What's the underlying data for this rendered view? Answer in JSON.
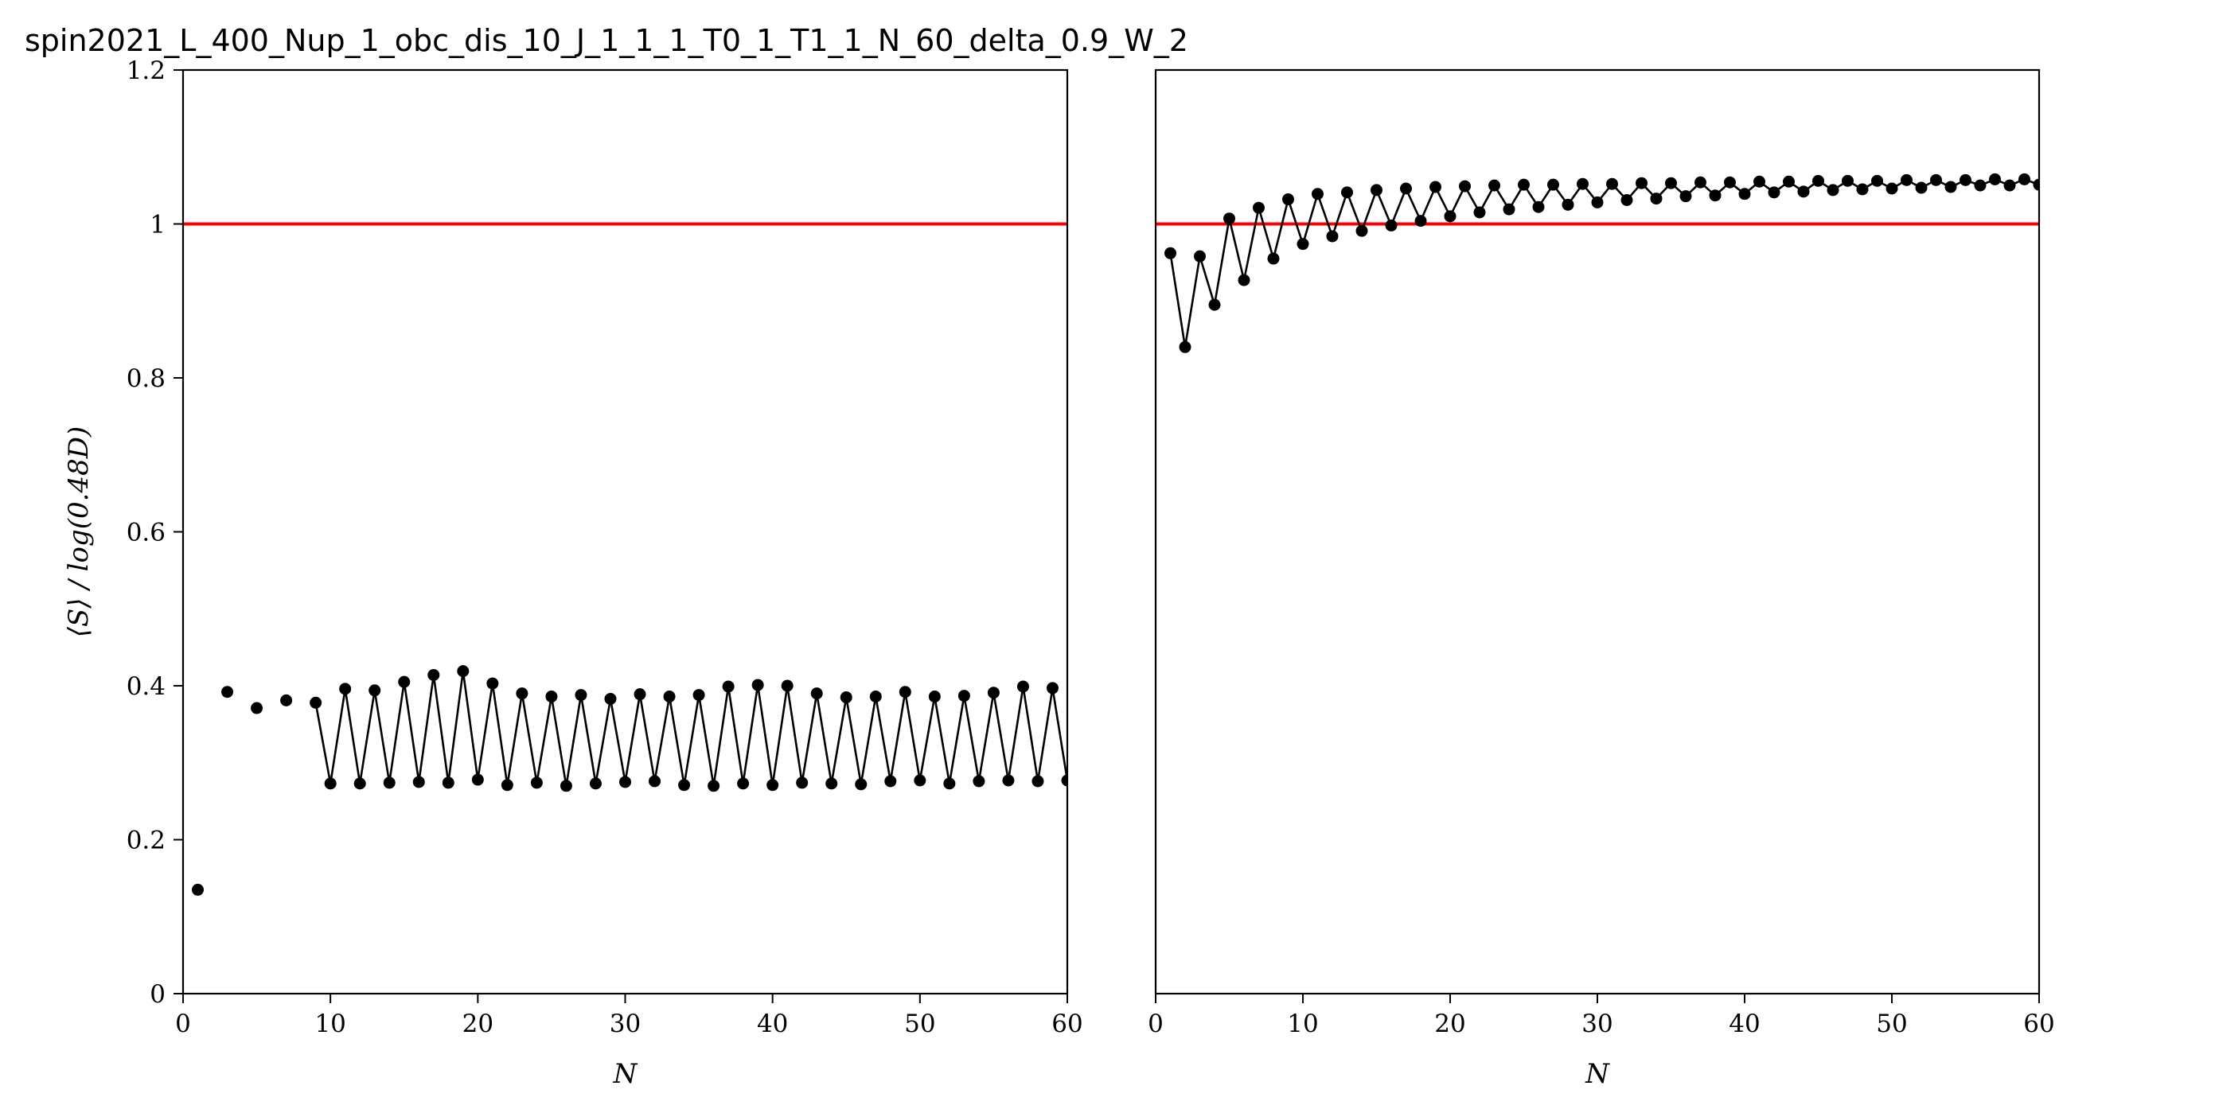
{
  "chart_data": [
    {
      "type": "line",
      "title": "spin2021_L_400_Nup_1_obc_dis_10_J_1_1_1_T0_1_T1_1_N_60_delta_0.9_W_2",
      "xlabel": "N",
      "ylabel": "⟨S⟩ / log(0.48D)",
      "xlim": [
        0,
        60
      ],
      "ylim": [
        0,
        1.2
      ],
      "xticks": [
        "0",
        "10",
        "20",
        "30",
        "40",
        "50",
        "60"
      ],
      "yticks": [
        "0",
        "0.2",
        "0.4",
        "0.6",
        "0.8",
        "1",
        "1.2"
      ],
      "reference_line": {
        "y": 1.0,
        "color": "#ff0000"
      },
      "marker_color": "#000000",
      "points": [
        [
          1,
          0.135
        ],
        [
          3,
          0.392
        ],
        [
          5,
          0.371
        ],
        [
          7,
          0.381
        ],
        [
          9,
          0.378
        ],
        [
          10,
          0.273
        ],
        [
          11,
          0.396
        ],
        [
          12,
          0.273
        ],
        [
          13,
          0.394
        ],
        [
          14,
          0.274
        ],
        [
          15,
          0.405
        ],
        [
          16,
          0.275
        ],
        [
          17,
          0.414
        ],
        [
          18,
          0.274
        ],
        [
          19,
          0.419
        ],
        [
          20,
          0.278
        ],
        [
          21,
          0.403
        ],
        [
          22,
          0.271
        ],
        [
          23,
          0.39
        ],
        [
          24,
          0.274
        ],
        [
          25,
          0.386
        ],
        [
          26,
          0.27
        ],
        [
          27,
          0.388
        ],
        [
          28,
          0.273
        ],
        [
          29,
          0.383
        ],
        [
          30,
          0.275
        ],
        [
          31,
          0.389
        ],
        [
          32,
          0.276
        ],
        [
          33,
          0.386
        ],
        [
          34,
          0.271
        ],
        [
          35,
          0.388
        ],
        [
          36,
          0.27
        ],
        [
          37,
          0.399
        ],
        [
          38,
          0.273
        ],
        [
          39,
          0.401
        ],
        [
          40,
          0.271
        ],
        [
          41,
          0.4
        ],
        [
          42,
          0.274
        ],
        [
          43,
          0.39
        ],
        [
          44,
          0.273
        ],
        [
          45,
          0.385
        ],
        [
          46,
          0.272
        ],
        [
          47,
          0.386
        ],
        [
          48,
          0.276
        ],
        [
          49,
          0.392
        ],
        [
          50,
          0.277
        ],
        [
          51,
          0.386
        ],
        [
          52,
          0.273
        ],
        [
          53,
          0.387
        ],
        [
          54,
          0.276
        ],
        [
          55,
          0.391
        ],
        [
          56,
          0.277
        ],
        [
          57,
          0.399
        ],
        [
          58,
          0.276
        ],
        [
          59,
          0.397
        ],
        [
          60,
          0.277
        ]
      ],
      "connected_from_x": 9
    },
    {
      "type": "line",
      "title": "",
      "xlabel": "N",
      "ylabel": "",
      "xlim": [
        0,
        60
      ],
      "ylim": [
        0,
        1.2
      ],
      "xticks": [
        "0",
        "10",
        "20",
        "30",
        "40",
        "50",
        "60"
      ],
      "yticks": [],
      "reference_line": {
        "y": 1.0,
        "color": "#ff0000"
      },
      "marker_color": "#000000",
      "points": [
        [
          1,
          0.962
        ],
        [
          2,
          0.84
        ],
        [
          3,
          0.958
        ],
        [
          4,
          0.895
        ],
        [
          5,
          1.007
        ],
        [
          6,
          0.927
        ],
        [
          7,
          1.021
        ],
        [
          8,
          0.955
        ],
        [
          9,
          1.032
        ],
        [
          10,
          0.974
        ],
        [
          11,
          1.039
        ],
        [
          12,
          0.984
        ],
        [
          13,
          1.041
        ],
        [
          14,
          0.991
        ],
        [
          15,
          1.044
        ],
        [
          16,
          0.998
        ],
        [
          17,
          1.046
        ],
        [
          18,
          1.004
        ],
        [
          19,
          1.048
        ],
        [
          20,
          1.01
        ],
        [
          21,
          1.049
        ],
        [
          22,
          1.015
        ],
        [
          23,
          1.05
        ],
        [
          24,
          1.019
        ],
        [
          25,
          1.051
        ],
        [
          26,
          1.022
        ],
        [
          27,
          1.051
        ],
        [
          28,
          1.025
        ],
        [
          29,
          1.052
        ],
        [
          30,
          1.028
        ],
        [
          31,
          1.052
        ],
        [
          32,
          1.031
        ],
        [
          33,
          1.053
        ],
        [
          34,
          1.033
        ],
        [
          35,
          1.053
        ],
        [
          36,
          1.036
        ],
        [
          37,
          1.054
        ],
        [
          38,
          1.037
        ],
        [
          39,
          1.054
        ],
        [
          40,
          1.039
        ],
        [
          41,
          1.055
        ],
        [
          42,
          1.041
        ],
        [
          43,
          1.055
        ],
        [
          44,
          1.042
        ],
        [
          45,
          1.056
        ],
        [
          46,
          1.044
        ],
        [
          47,
          1.056
        ],
        [
          48,
          1.045
        ],
        [
          49,
          1.056
        ],
        [
          50,
          1.046
        ],
        [
          51,
          1.057
        ],
        [
          52,
          1.047
        ],
        [
          53,
          1.057
        ],
        [
          54,
          1.048
        ],
        [
          55,
          1.057
        ],
        [
          56,
          1.05
        ],
        [
          57,
          1.058
        ],
        [
          58,
          1.05
        ],
        [
          59,
          1.058
        ],
        [
          60,
          1.051
        ]
      ],
      "connected_from_x": 1
    }
  ]
}
